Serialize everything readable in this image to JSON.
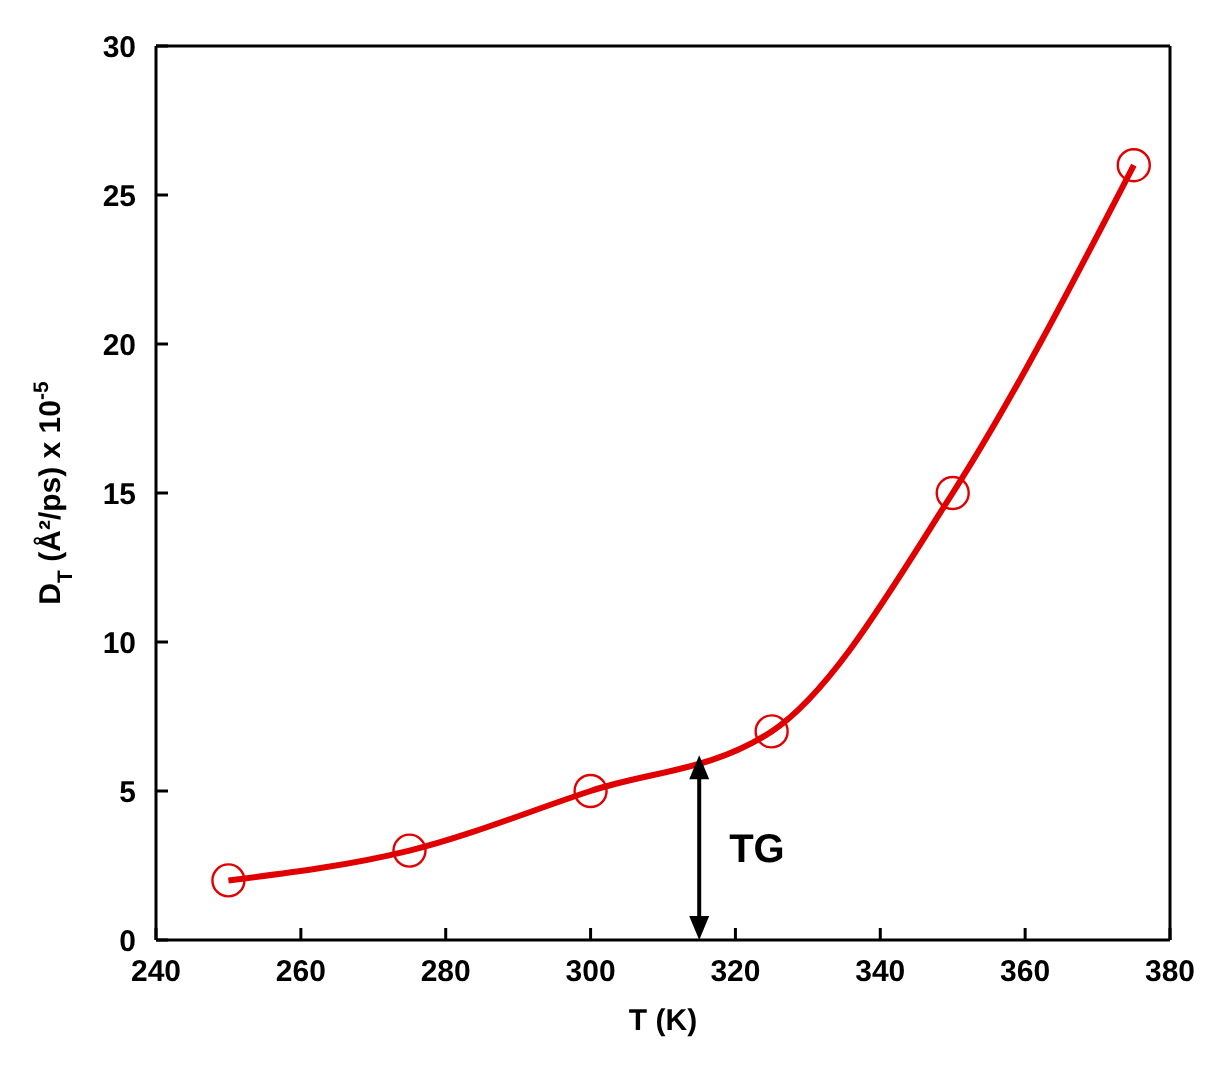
{
  "chart_data": {
    "type": "line",
    "xlabel": "T (K)",
    "ylabel": "D$_{T}$ (Å²/ps) x 10$^{-5}$",
    "x": [
      250,
      275,
      300,
      325,
      350,
      375
    ],
    "series": [
      {
        "color": "#e00000",
        "values": [
          2,
          3,
          5,
          7,
          15,
          26
        ]
      }
    ],
    "xlim": [
      240,
      380
    ],
    "xticks": [
      240,
      260,
      280,
      300,
      320,
      340,
      360,
      380
    ],
    "ylim": [
      0,
      30
    ],
    "yticks": [
      0,
      5,
      10,
      15,
      20,
      25,
      30
    ],
    "marker": "circle",
    "line_style": "solid",
    "grid": false,
    "legend": false,
    "annotations": [
      {
        "text": "TG",
        "x": 315,
        "y": 6.2
      }
    ]
  }
}
